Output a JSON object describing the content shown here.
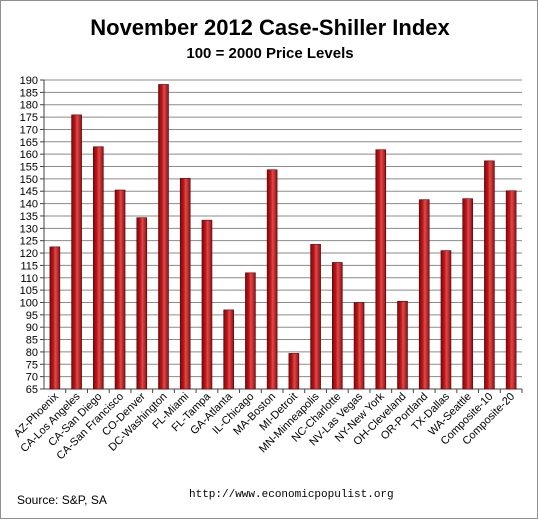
{
  "chart_data": {
    "type": "bar",
    "title": "November 2012 Case-Shiller Index",
    "subtitle": "100 = 2000 Price Levels",
    "categories": [
      "AZ-Phoenix",
      "CA-Los Angeles",
      "CA-San Diego",
      "CA-San Francisco",
      "CO-Denver",
      "DC-Washington",
      "FL-Miami",
      "FL-Tampa",
      "GA-Atlanta",
      "IL-Chicago",
      "MA-Boston",
      "MI-Detroit",
      "MN-Minneapolis",
      "NC-Charlotte",
      "NV-Las Vegas",
      "NY-New York",
      "OH-Cleveland",
      "OR-Portland",
      "TX-Dallas",
      "WA-Seattle",
      "Composite-10",
      "Composite-20"
    ],
    "values": [
      122.5,
      175.9,
      163.0,
      145.5,
      134.3,
      188.2,
      150.2,
      133.3,
      97.0,
      112.0,
      153.7,
      79.4,
      123.5,
      116.2,
      100.0,
      161.8,
      100.5,
      141.6,
      121.0,
      142.0,
      157.3,
      145.2
    ],
    "ylim": [
      65,
      190
    ],
    "yticks": [
      65,
      70,
      75,
      80,
      85,
      90,
      95,
      100,
      105,
      110,
      115,
      120,
      125,
      130,
      135,
      140,
      145,
      150,
      155,
      160,
      165,
      170,
      175,
      180,
      185,
      190
    ],
    "grid": true,
    "xlabel": "",
    "ylabel": "",
    "bar_color": "#c0161a"
  },
  "footer": {
    "source": "Source:  S&P, SA",
    "website": "http://www.economicpopulist.org"
  }
}
